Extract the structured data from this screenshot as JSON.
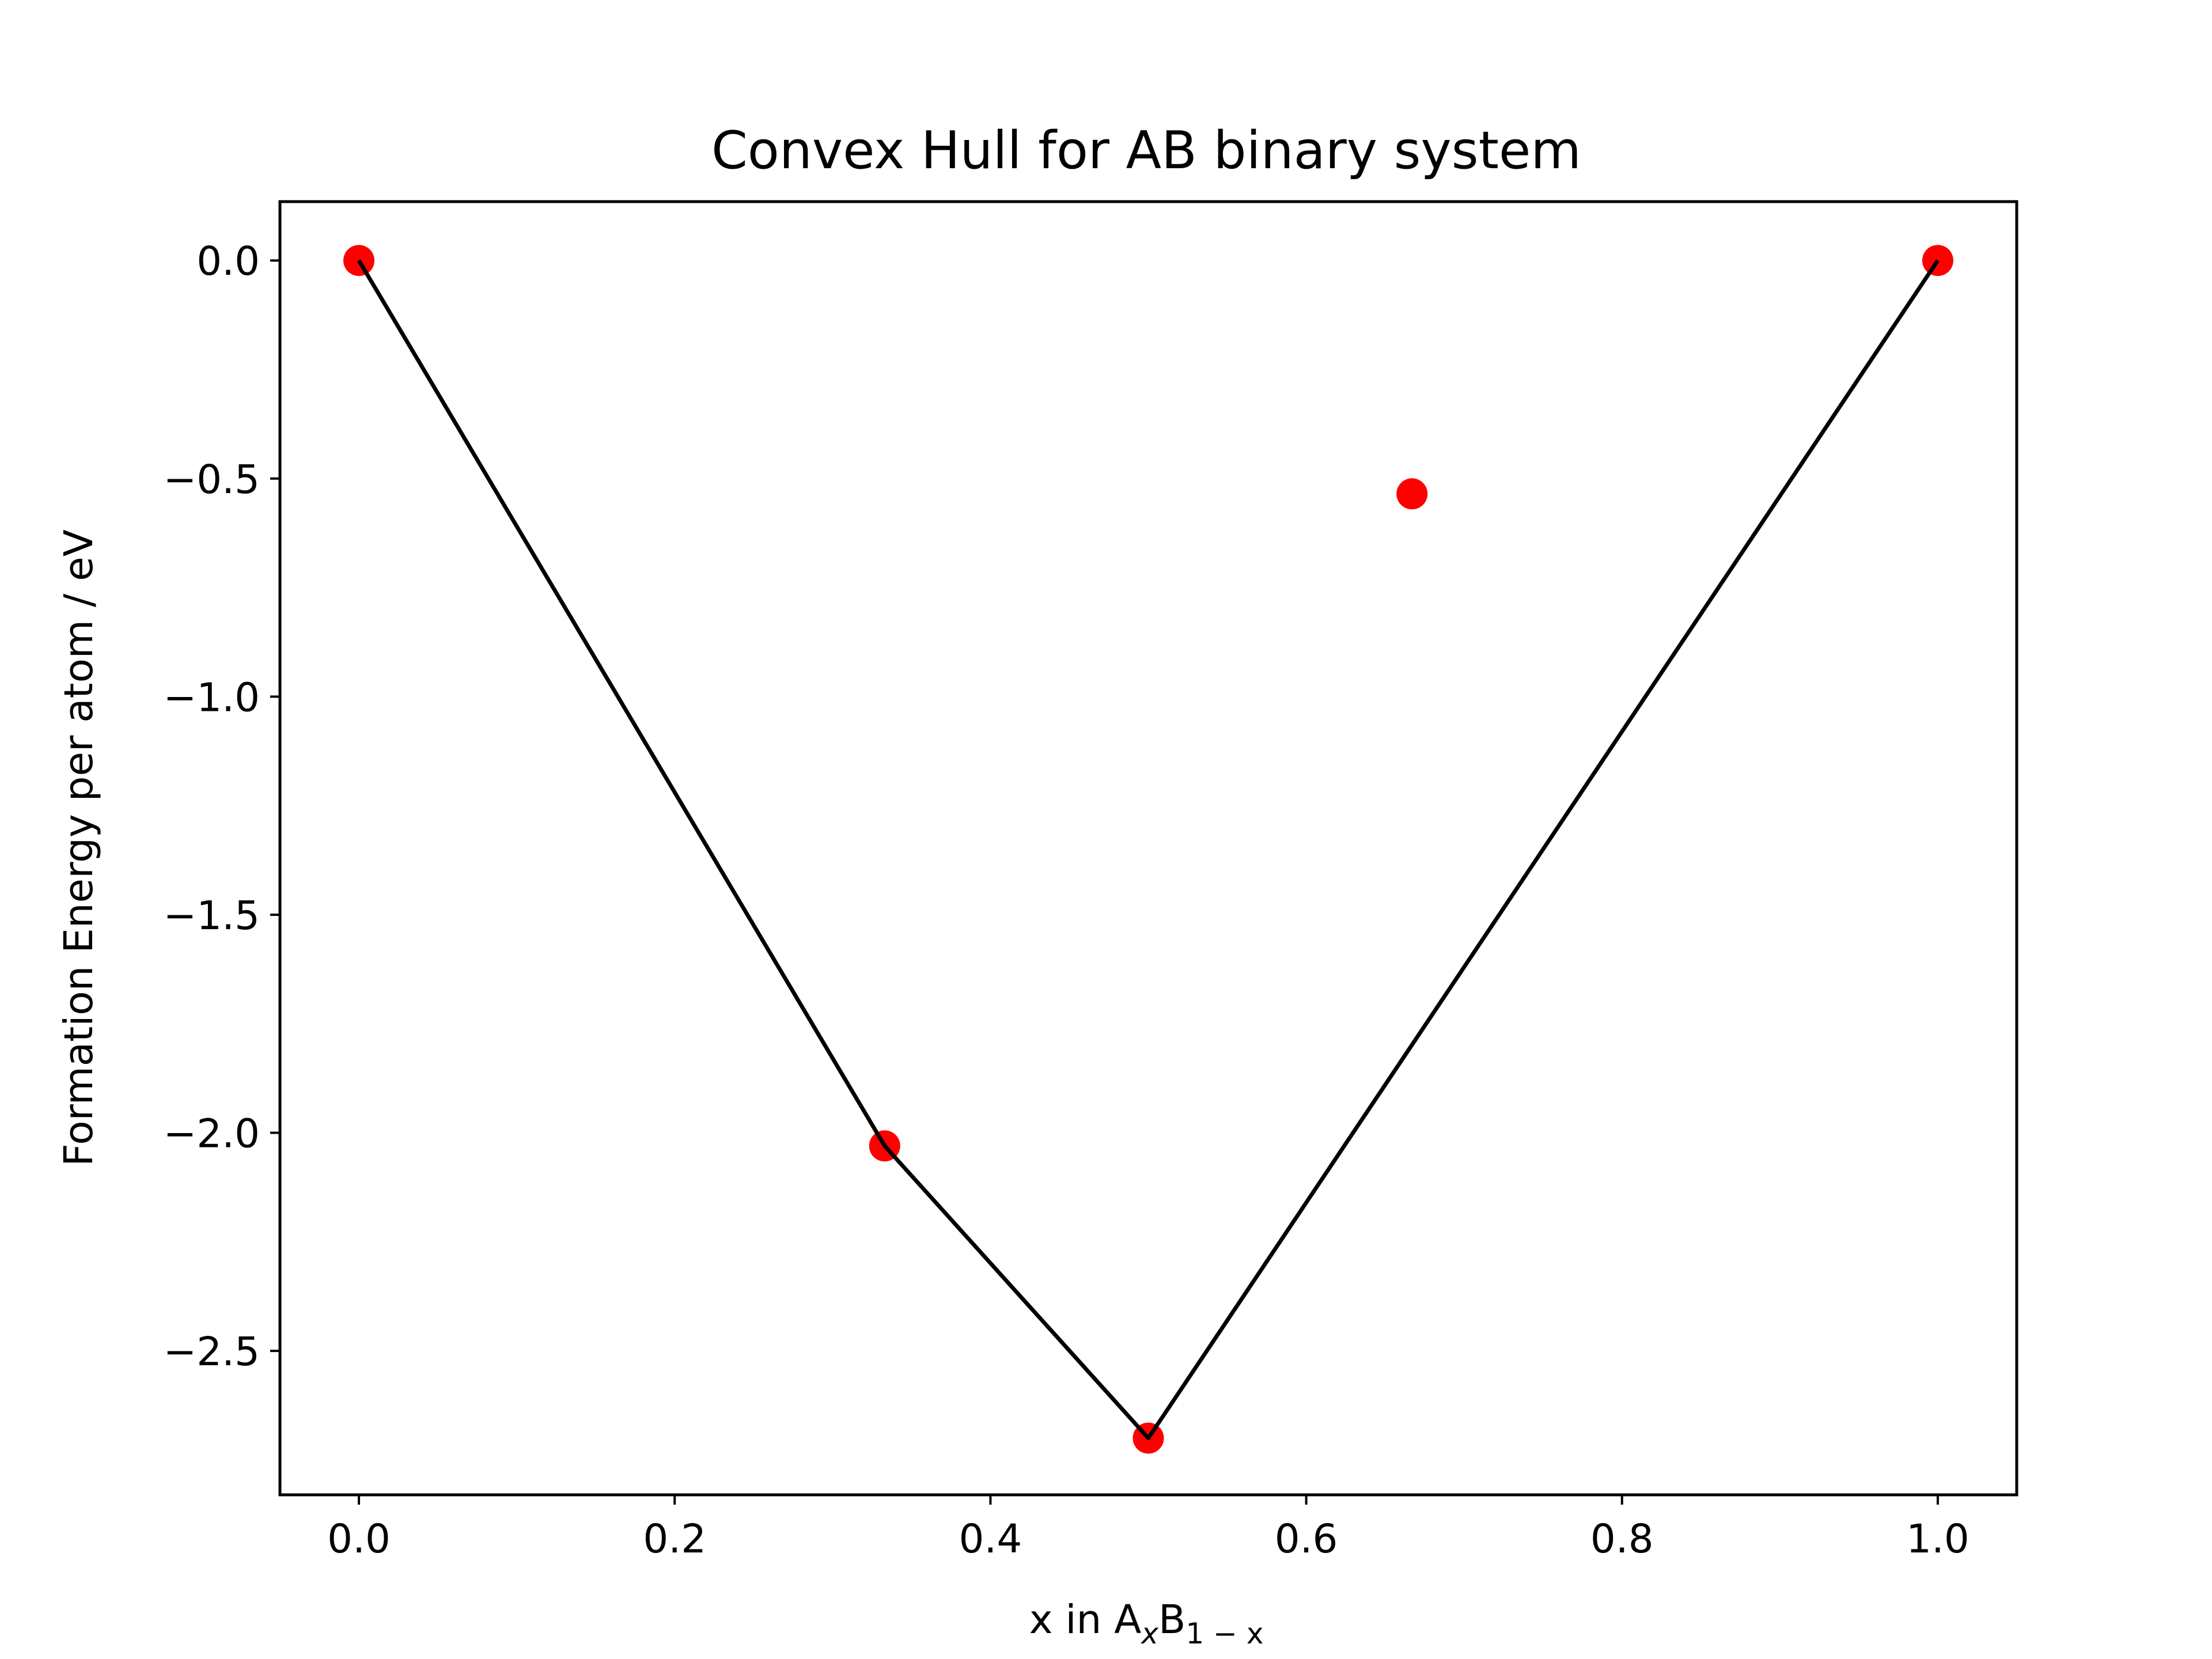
{
  "chart_data": {
    "type": "scatter",
    "title": "Convex Hull for AB binary system",
    "xlabel": {
      "prefix": "x in A",
      "sub1": "x",
      "mid": "B",
      "sub2": "1 − x"
    },
    "ylabel": "Formation Energy per atom / eV",
    "xlim": [
      -0.05,
      1.05
    ],
    "ylim": [
      -2.83,
      0.135
    ],
    "xticks": [
      0.0,
      0.2,
      0.4,
      0.6,
      0.8,
      1.0
    ],
    "xtick_labels": [
      "0.0",
      "0.2",
      "0.4",
      "0.6",
      "0.8",
      "1.0"
    ],
    "yticks": [
      0.0,
      -0.5,
      -1.0,
      -1.5,
      -2.0,
      -2.5
    ],
    "ytick_labels": [
      "0.0",
      "−0.5",
      "−1.0",
      "−1.5",
      "−2.0",
      "−2.5"
    ],
    "grid": false,
    "series": [
      {
        "kind": "scatter",
        "color": "#ff0000",
        "x": [
          0.0,
          0.333,
          0.5,
          0.667,
          1.0
        ],
        "y": [
          0.0,
          -2.03,
          -2.7,
          -0.535,
          0.0
        ]
      },
      {
        "kind": "line",
        "color": "#000000",
        "x": [
          0.0,
          0.333,
          0.5,
          1.0
        ],
        "y": [
          0.0,
          -2.03,
          -2.7,
          0.0
        ]
      }
    ]
  }
}
